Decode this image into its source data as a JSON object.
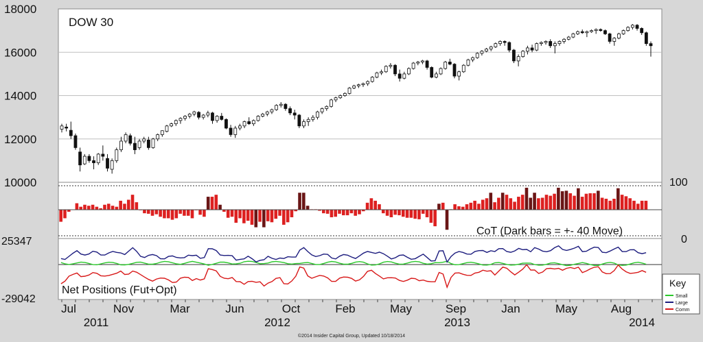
{
  "chart_data": [
    {
      "type": "candlestick",
      "title": "DOW 30",
      "ylim": [
        10000,
        18000
      ],
      "yticks": [
        10000,
        12000,
        14000,
        16000,
        18000
      ],
      "grid": true,
      "weekly_ohlc": [
        [
          12450,
          12700,
          12300,
          12600
        ],
        [
          12550,
          12700,
          12350,
          12500
        ],
        [
          12400,
          12800,
          12000,
          12150
        ],
        [
          12150,
          12250,
          11500,
          11600
        ],
        [
          11400,
          11600,
          10500,
          10800
        ],
        [
          10850,
          11300,
          10800,
          11200
        ],
        [
          11200,
          11300,
          10900,
          11000
        ],
        [
          11000,
          11200,
          10600,
          10900
        ],
        [
          10900,
          11350,
          10800,
          11300
        ],
        [
          11300,
          11700,
          11000,
          11200
        ],
        [
          11100,
          11300,
          10500,
          10650
        ],
        [
          10600,
          11100,
          10400,
          11000
        ],
        [
          11000,
          11600,
          10900,
          11500
        ],
        [
          11500,
          12100,
          11400,
          11900
        ],
        [
          11900,
          12300,
          11800,
          12200
        ],
        [
          12150,
          12250,
          11700,
          11800
        ],
        [
          11800,
          12100,
          11300,
          11500
        ],
        [
          11600,
          12000,
          11500,
          11900
        ],
        [
          11900,
          12100,
          11800,
          12000
        ],
        [
          11950,
          12100,
          11500,
          11600
        ],
        [
          11600,
          12050,
          11550,
          12000
        ],
        [
          12000,
          12250,
          11900,
          12200
        ],
        [
          12200,
          12400,
          12100,
          12380
        ],
        [
          12350,
          12650,
          12300,
          12600
        ],
        [
          12600,
          12750,
          12550,
          12700
        ],
        [
          12700,
          12900,
          12600,
          12850
        ],
        [
          12850,
          13000,
          12700,
          12950
        ],
        [
          12950,
          13100,
          12850,
          13050
        ],
        [
          13050,
          13200,
          12950,
          13150
        ],
        [
          13150,
          13300,
          13050,
          13250
        ],
        [
          13230,
          13280,
          12900,
          13000
        ],
        [
          13000,
          13150,
          12900,
          13100
        ],
        [
          13100,
          13300,
          13000,
          13200
        ],
        [
          13200,
          13250,
          12700,
          12850
        ],
        [
          12850,
          13100,
          12750,
          13050
        ],
        [
          13050,
          13200,
          12850,
          12900
        ],
        [
          12900,
          12950,
          12450,
          12500
        ],
        [
          12500,
          12650,
          12100,
          12200
        ],
        [
          12200,
          12600,
          12050,
          12500
        ],
        [
          12500,
          12700,
          12400,
          12600
        ],
        [
          12600,
          12850,
          12500,
          12800
        ],
        [
          12800,
          13000,
          12650,
          12700
        ],
        [
          12700,
          12900,
          12600,
          12850
        ],
        [
          12850,
          13100,
          12800,
          13050
        ],
        [
          13050,
          13200,
          13000,
          13150
        ],
        [
          13150,
          13300,
          13050,
          13250
        ],
        [
          13250,
          13400,
          13150,
          13350
        ],
        [
          13350,
          13600,
          13300,
          13550
        ],
        [
          13550,
          13700,
          13450,
          13600
        ],
        [
          13600,
          13650,
          13300,
          13400
        ],
        [
          13400,
          13500,
          13100,
          13200
        ],
        [
          13200,
          13350,
          12900,
          13100
        ],
        [
          13100,
          13150,
          12500,
          12600
        ],
        [
          12600,
          12900,
          12500,
          12800
        ],
        [
          12800,
          13000,
          12600,
          12900
        ],
        [
          12900,
          13100,
          12800,
          13000
        ],
        [
          13000,
          13300,
          12900,
          13250
        ],
        [
          13250,
          13450,
          13150,
          13400
        ],
        [
          13400,
          13550,
          13300,
          13500
        ],
        [
          13500,
          13850,
          13450,
          13800
        ],
        [
          13800,
          13950,
          13700,
          13900
        ],
        [
          13900,
          14050,
          13850,
          14000
        ],
        [
          14000,
          14150,
          13950,
          14100
        ],
        [
          14100,
          14400,
          14050,
          14350
        ],
        [
          14350,
          14500,
          14300,
          14450
        ],
        [
          14450,
          14550,
          14350,
          14500
        ],
        [
          14500,
          14600,
          14400,
          14550
        ],
        [
          14550,
          14700,
          14450,
          14650
        ],
        [
          14650,
          14900,
          14600,
          14850
        ],
        [
          14850,
          15100,
          14800,
          15050
        ],
        [
          15050,
          15200,
          14950,
          15100
        ],
        [
          15100,
          15400,
          15050,
          15350
        ],
        [
          15350,
          15500,
          15250,
          15400
        ],
        [
          15400,
          15450,
          14900,
          15000
        ],
        [
          15000,
          15200,
          14650,
          14800
        ],
        [
          14800,
          15100,
          14750,
          15000
        ],
        [
          15000,
          15300,
          14950,
          15250
        ],
        [
          15250,
          15550,
          15200,
          15500
        ],
        [
          15500,
          15600,
          15400,
          15550
        ],
        [
          15550,
          15650,
          15450,
          15600
        ],
        [
          15600,
          15650,
          15200,
          15300
        ],
        [
          15300,
          15350,
          14800,
          14850
        ],
        [
          14850,
          15100,
          14800,
          15000
        ],
        [
          15000,
          15300,
          14950,
          15250
        ],
        [
          15250,
          15600,
          15200,
          15550
        ],
        [
          15550,
          15700,
          15400,
          15450
        ],
        [
          15450,
          15500,
          14800,
          14900
        ],
        [
          14900,
          15150,
          14700,
          15100
        ],
        [
          15100,
          15450,
          15050,
          15400
        ],
        [
          15400,
          15700,
          15350,
          15650
        ],
        [
          15650,
          15800,
          15550,
          15750
        ],
        [
          15750,
          16000,
          15700,
          15950
        ],
        [
          15950,
          16100,
          15850,
          16050
        ],
        [
          16050,
          16200,
          16000,
          16150
        ],
        [
          16150,
          16300,
          16050,
          16250
        ],
        [
          16250,
          16450,
          16200,
          16400
        ],
        [
          16400,
          16550,
          16300,
          16500
        ],
        [
          16500,
          16550,
          16300,
          16450
        ],
        [
          16450,
          16500,
          16000,
          16100
        ],
        [
          16100,
          16150,
          15500,
          15600
        ],
        [
          15600,
          15900,
          15350,
          15800
        ],
        [
          15800,
          16100,
          15750,
          16050
        ],
        [
          16050,
          16300,
          15900,
          16200
        ],
        [
          16200,
          16350,
          16000,
          16100
        ],
        [
          16100,
          16450,
          16050,
          16400
        ],
        [
          16400,
          16500,
          16300,
          16450
        ],
        [
          16450,
          16550,
          16350,
          16500
        ],
        [
          16500,
          16600,
          16200,
          16300
        ],
        [
          16300,
          16500,
          15950,
          16400
        ],
        [
          16400,
          16550,
          16300,
          16500
        ],
        [
          16500,
          16650,
          16400,
          16600
        ],
        [
          16600,
          16750,
          16550,
          16700
        ],
        [
          16700,
          16900,
          16650,
          16850
        ],
        [
          16850,
          17000,
          16800,
          16950
        ],
        [
          16950,
          17050,
          16850,
          16900
        ],
        [
          16900,
          17000,
          16700,
          16950
        ],
        [
          16950,
          17050,
          16900,
          17000
        ],
        [
          17000,
          17100,
          16850,
          17050
        ],
        [
          17050,
          17100,
          16950,
          17000
        ],
        [
          17000,
          17050,
          16800,
          16850
        ],
        [
          16850,
          16900,
          16400,
          16500
        ],
        [
          16500,
          16700,
          16300,
          16650
        ],
        [
          16650,
          16900,
          16600,
          16850
        ],
        [
          16850,
          17050,
          16800,
          17000
        ],
        [
          17000,
          17200,
          16950,
          17150
        ],
        [
          17150,
          17300,
          17050,
          17250
        ],
        [
          17250,
          17300,
          17000,
          17100
        ],
        [
          17100,
          17150,
          16800,
          16900
        ],
        [
          16900,
          16950,
          16300,
          16400
        ],
        [
          16400,
          16500,
          15800,
          16300
        ]
      ]
    },
    {
      "type": "bar",
      "annotation": "CoT (Dark bars = +- 40 Move)",
      "ylim": [
        0,
        100
      ],
      "yticks": [
        0,
        100
      ],
      "midline": 50,
      "dashed_lines": [
        0,
        100
      ],
      "colors": {
        "normal": "#dd2020",
        "dark": "#6a1616"
      },
      "values": [
        28,
        35,
        48,
        52,
        65,
        58,
        62,
        60,
        62,
        58,
        55,
        62,
        64,
        60,
        58,
        70,
        64,
        72,
        82,
        67,
        51,
        45,
        44,
        40,
        43,
        38,
        35,
        35,
        32,
        35,
        44,
        40,
        40,
        35,
        51,
        42,
        38,
        78,
        78,
        82,
        62,
        48,
        36,
        38,
        26,
        35,
        25,
        30,
        22,
        17,
        28,
        17,
        29,
        27,
        34,
        40,
        22,
        27,
        37,
        49,
        86,
        86,
        60,
        53,
        53,
        50,
        45,
        44,
        37,
        38,
        44,
        41,
        41,
        45,
        40,
        43,
        49,
        66,
        75,
        70,
        63,
        45,
        40,
        37,
        42,
        41,
        38,
        36,
        36,
        34,
        33,
        44,
        37,
        26,
        19,
        64,
        66,
        12,
        53,
        63,
        59,
        58,
        63,
        66,
        70,
        64,
        72,
        75,
        86,
        67,
        76,
        86,
        82,
        75,
        68,
        78,
        82,
        96,
        76,
        86,
        75,
        76,
        82,
        80,
        84,
        96,
        89,
        90,
        85,
        80,
        95,
        78,
        84,
        85,
        85,
        90,
        76,
        74,
        70,
        74,
        95,
        82,
        79,
        75,
        70,
        64,
        70,
        70
      ]
    },
    {
      "type": "line",
      "title": "Net Positions (Fut+Opt)",
      "yticks": [
        -29042,
        25347
      ],
      "ylim": [
        -29042,
        25347
      ],
      "legend": {
        "title": "Key",
        "entries": [
          "Small",
          "Large",
          "Comm"
        ],
        "placement": "right"
      },
      "colors": {
        "Small": "#2ac82a",
        "Large": "#1c1c7e",
        "Comm": "#d81818"
      },
      "series_note": "Small near zero; Large positive, Comm negative mirror"
    }
  ],
  "x_axis": {
    "months": [
      "Jul",
      "Nov",
      "Mar",
      "Jun",
      "Oct",
      "Feb",
      "May",
      "Sep",
      "Jan",
      "May",
      "Aug"
    ],
    "years": [
      "2011",
      "2012",
      "2013",
      "2014"
    ]
  },
  "footer": "©2014 Insider Capital Group, Updated 10/18/2014"
}
